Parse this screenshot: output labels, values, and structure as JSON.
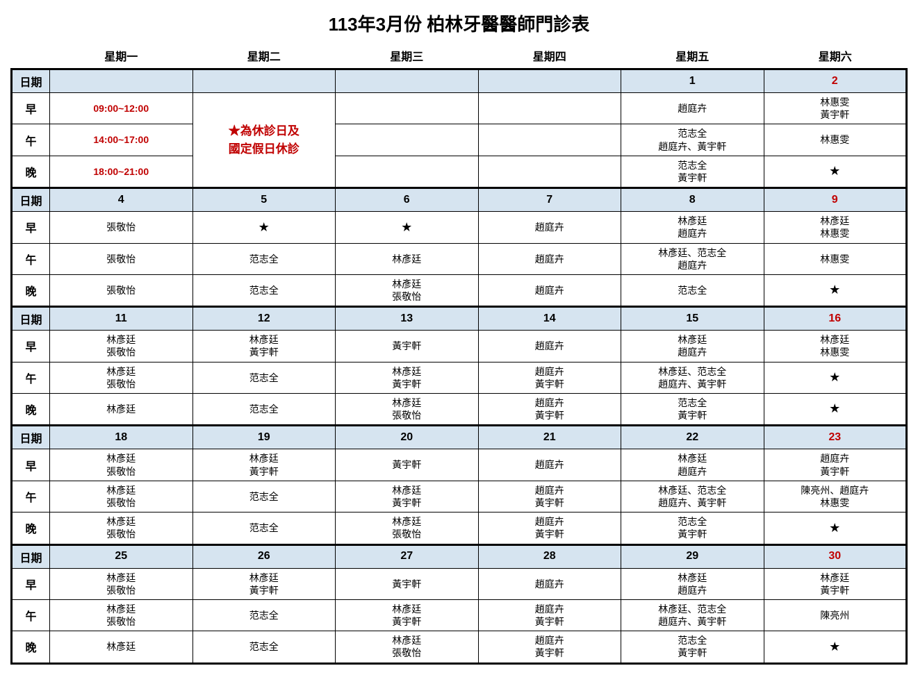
{
  "title": "113年3月份 柏林牙醫醫師門診表",
  "header_bg": "#d6e4f0",
  "red_color": "#c00000",
  "days": [
    "星期一",
    "星期二",
    "星期三",
    "星期四",
    "星期五",
    "星期六"
  ],
  "rowlabels": {
    "date": "日期",
    "morn": "早",
    "aft": "午",
    "eve": "晚"
  },
  "note": "★為休診日及\n國定假日休診",
  "times": {
    "morn": "09:00~12:00",
    "aft": "14:00~17:00",
    "eve": "18:00~21:00"
  },
  "star": "★",
  "weeks": [
    {
      "dates": [
        "",
        "",
        "",
        "",
        "1",
        "2"
      ],
      "morn": [
        "",
        "",
        "",
        "",
        "趙庭卉",
        "林惠雯\n黃宇軒"
      ],
      "aft": [
        "",
        "",
        "",
        "",
        "范志全\n趙庭卉、黃宇軒",
        "林惠雯"
      ],
      "eve": [
        "",
        "",
        "",
        "",
        "范志全\n黃宇軒",
        "★"
      ]
    },
    {
      "dates": [
        "4",
        "5",
        "6",
        "7",
        "8",
        "9"
      ],
      "morn": [
        "張敬怡",
        "★",
        "★",
        "趙庭卉",
        "林彥廷\n趙庭卉",
        "林彥廷\n林惠雯"
      ],
      "aft": [
        "張敬怡",
        "范志全",
        "林彥廷",
        "趙庭卉",
        "林彥廷、范志全\n趙庭卉",
        "林惠雯"
      ],
      "eve": [
        "張敬怡",
        "范志全",
        "林彥廷\n張敬怡",
        "趙庭卉",
        "范志全",
        "★"
      ]
    },
    {
      "dates": [
        "11",
        "12",
        "13",
        "14",
        "15",
        "16"
      ],
      "morn": [
        "林彥廷\n張敬怡",
        "林彥廷\n黃宇軒",
        "黃宇軒",
        "趙庭卉",
        "林彥廷\n趙庭卉",
        "林彥廷\n林惠雯"
      ],
      "aft": [
        "林彥廷\n張敬怡",
        "范志全",
        "林彥廷\n黃宇軒",
        "趙庭卉\n黃宇軒",
        "林彥廷、范志全\n趙庭卉、黃宇軒",
        "★"
      ],
      "eve": [
        "林彥廷",
        "范志全",
        "林彥廷\n張敬怡",
        "趙庭卉\n黃宇軒",
        "范志全\n黃宇軒",
        "★"
      ]
    },
    {
      "dates": [
        "18",
        "19",
        "20",
        "21",
        "22",
        "23"
      ],
      "morn": [
        "林彥廷\n張敬怡",
        "林彥廷\n黃宇軒",
        "黃宇軒",
        "趙庭卉",
        "林彥廷\n趙庭卉",
        "趙庭卉\n黃宇軒"
      ],
      "aft": [
        "林彥廷\n張敬怡",
        "范志全",
        "林彥廷\n黃宇軒",
        "趙庭卉\n黃宇軒",
        "林彥廷、范志全\n趙庭卉、黃宇軒",
        "陳亮州、趙庭卉\n林惠雯"
      ],
      "eve": [
        "林彥廷\n張敬怡",
        "范志全",
        "林彥廷\n張敬怡",
        "趙庭卉\n黃宇軒",
        "范志全\n黃宇軒",
        "★"
      ]
    },
    {
      "dates": [
        "25",
        "26",
        "27",
        "28",
        "29",
        "30"
      ],
      "morn": [
        "林彥廷\n張敬怡",
        "林彥廷\n黃宇軒",
        "黃宇軒",
        "趙庭卉",
        "林彥廷\n趙庭卉",
        "林彥廷\n黃宇軒"
      ],
      "aft": [
        "林彥廷\n張敬怡",
        "范志全",
        "林彥廷\n黃宇軒",
        "趙庭卉\n黃宇軒",
        "林彥廷、范志全\n趙庭卉、黃宇軒",
        "陳亮州"
      ],
      "eve": [
        "林彥廷",
        "范志全",
        "林彥廷\n張敬怡",
        "趙庭卉\n黃宇軒",
        "范志全\n黃宇軒",
        "★"
      ]
    }
  ]
}
